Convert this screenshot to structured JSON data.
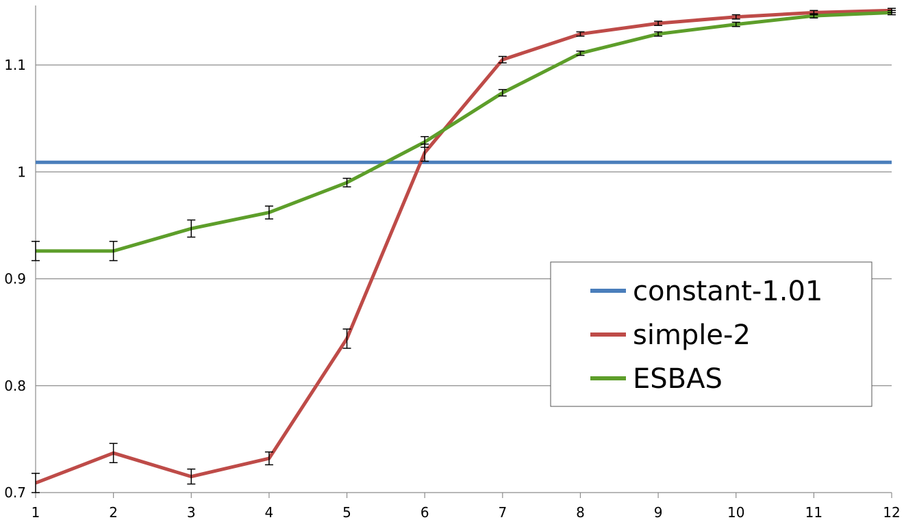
{
  "chart_data": {
    "type": "line",
    "title": "",
    "xlabel": "",
    "ylabel": "",
    "x": [
      1,
      2,
      3,
      4,
      5,
      6,
      7,
      8,
      9,
      10,
      11,
      12
    ],
    "xlim": [
      1,
      12
    ],
    "ylim": [
      0.7,
      1.15
    ],
    "y_ticks": [
      0.7,
      0.8,
      0.9,
      1,
      1.1
    ],
    "y_tick_labels": [
      "0.7",
      "0.8",
      "0.9",
      "1",
      "1.1"
    ],
    "x_tick_labels": [
      "1",
      "2",
      "3",
      "4",
      "5",
      "6",
      "7",
      "8",
      "9",
      "10",
      "11",
      "12"
    ],
    "grid": "horizontal",
    "legend_position": "right",
    "series": [
      {
        "name": "constant-1.01",
        "color": "#4a7ebb",
        "values": [
          1.009,
          1.009,
          1.009,
          1.009,
          1.009,
          1.009,
          1.009,
          1.009,
          1.009,
          1.009,
          1.009,
          1.009
        ],
        "errors": null
      },
      {
        "name": "simple-2",
        "color": "#be4b48",
        "values": [
          0.709,
          0.737,
          0.715,
          0.732,
          0.844,
          1.018,
          1.105,
          1.129,
          1.139,
          1.145,
          1.149,
          1.151
        ],
        "errors": [
          0.009,
          0.009,
          0.007,
          0.006,
          0.009,
          0.008,
          0.003,
          0.002,
          0.002,
          0.002,
          0.002,
          0.002
        ]
      },
      {
        "name": "ESBAS",
        "color": "#5d9e2a",
        "values": [
          0.926,
          0.926,
          0.947,
          0.962,
          0.99,
          1.028,
          1.074,
          1.111,
          1.129,
          1.138,
          1.146,
          1.149
        ],
        "errors": [
          0.009,
          0.009,
          0.008,
          0.006,
          0.004,
          0.005,
          0.003,
          0.002,
          0.002,
          0.002,
          0.002,
          0.002
        ]
      }
    ]
  }
}
